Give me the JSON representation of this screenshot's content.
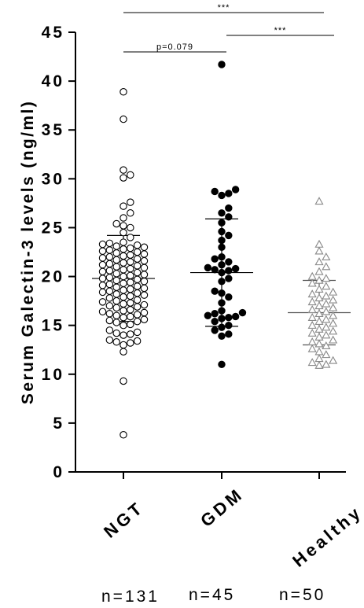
{
  "chart_data": {
    "type": "scatter",
    "ylabel": "Serum Galectin-3 levels (ng/ml)",
    "ylim": [
      0,
      45
    ],
    "yticks": [
      "0",
      "5",
      "10",
      "15",
      "20",
      "25",
      "30",
      "35",
      "40",
      "45"
    ],
    "categories": [
      "NGT",
      "GDM",
      "Healthy"
    ],
    "sample_sizes": [
      "n=131",
      "n=45",
      "n=50"
    ],
    "groups": [
      {
        "name": "NGT",
        "marker": "open-circle",
        "color": "#000000",
        "mean": 19.8,
        "sd_upper": 24.2,
        "sd_lower": 15.4,
        "values": [
          3.8,
          9.3,
          12.3,
          13.0,
          13.2,
          13.3,
          13.4,
          13.5,
          14.0,
          14.1,
          14.2,
          14.3,
          14.5,
          15.0,
          15.1,
          15.3,
          15.4,
          15.5,
          15.6,
          15.8,
          15.9,
          16.0,
          16.1,
          16.2,
          16.3,
          16.4,
          16.5,
          16.6,
          16.8,
          16.9,
          17.0,
          17.1,
          17.2,
          17.3,
          17.4,
          17.5,
          17.6,
          17.8,
          17.9,
          18.0,
          18.1,
          18.2,
          18.3,
          18.4,
          18.5,
          18.6,
          18.7,
          18.8,
          18.9,
          19.0,
          19.1,
          19.2,
          19.3,
          19.4,
          19.5,
          19.6,
          19.7,
          19.8,
          19.9,
          20.0,
          20.1,
          20.2,
          20.3,
          20.4,
          20.5,
          20.6,
          20.7,
          20.8,
          20.9,
          21.0,
          21.1,
          21.2,
          21.3,
          21.4,
          21.5,
          21.6,
          21.7,
          21.8,
          21.9,
          22.0,
          22.1,
          22.2,
          22.3,
          22.4,
          22.5,
          22.6,
          22.7,
          22.8,
          22.9,
          23.0,
          23.1,
          23.2,
          23.3,
          23.4,
          23.5,
          24.0,
          24.5,
          25.0,
          25.2,
          25.4,
          26.0,
          26.5,
          27.2,
          27.6,
          30.1,
          30.4,
          30.9,
          36.1,
          38.9
        ],
        "data_labels": []
      },
      {
        "name": "GDM",
        "marker": "filled-circle",
        "color": "#000000",
        "mean": 20.4,
        "sd_upper": 25.9,
        "sd_lower": 14.9,
        "values": [
          11.0,
          13.9,
          14.1,
          14.5,
          14.8,
          15.0,
          15.4,
          15.7,
          15.8,
          15.9,
          16.0,
          16.2,
          16.3,
          16.5,
          17.3,
          17.9,
          18.3,
          18.5,
          19.5,
          19.8,
          20.4,
          20.6,
          20.7,
          20.8,
          20.9,
          21.2,
          21.5,
          21.8,
          22.0,
          23.0,
          23.7,
          24.2,
          24.6,
          25.5,
          26.1,
          26.5,
          27.0,
          28.3,
          28.5,
          28.7,
          28.9,
          41.7
        ],
        "data_labels": []
      },
      {
        "name": "Healthy",
        "marker": "open-triangle",
        "color": "#888888",
        "mean": 16.3,
        "sd_upper": 19.6,
        "sd_lower": 13.0,
        "values": [
          10.9,
          11.0,
          11.2,
          11.4,
          11.6,
          12.0,
          12.3,
          12.6,
          12.9,
          13.1,
          13.3,
          13.5,
          13.8,
          14.0,
          14.2,
          14.4,
          14.6,
          14.8,
          15.0,
          15.2,
          15.4,
          15.6,
          15.8,
          16.0,
          16.2,
          16.4,
          16.6,
          16.8,
          17.0,
          17.2,
          17.4,
          17.6,
          17.8,
          18.0,
          18.2,
          18.4,
          18.7,
          19.0,
          19.3,
          19.6,
          19.8,
          20.0,
          20.5,
          21.0,
          21.5,
          22.0,
          22.6,
          23.3,
          27.7
        ],
        "data_labels": []
      }
    ],
    "significance": [
      {
        "from": "NGT",
        "to": "Healthy",
        "label": "***"
      },
      {
        "from": "NGT",
        "to": "GDM",
        "label": "p=0.079"
      },
      {
        "from": "GDM",
        "to": "Healthy",
        "label": "***"
      }
    ]
  }
}
